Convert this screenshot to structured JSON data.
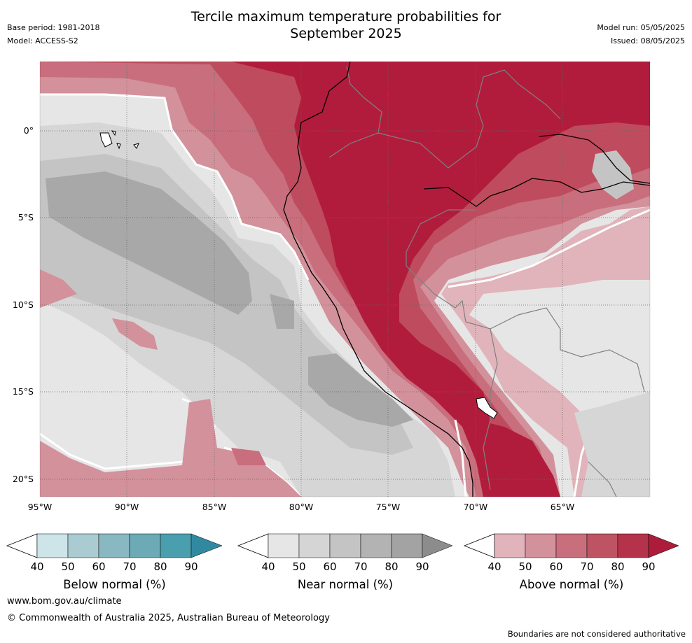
{
  "header": {
    "title_line1": "Tercile maximum temperature probabilities for",
    "title_line2": "September 2025",
    "base_period": "Base period: 1981-2018",
    "model": "Model: ACCESS-S2",
    "model_run": "Model run: 05/05/2025",
    "issued": "Issued: 08/05/2025"
  },
  "map": {
    "lon_ticks": [
      "95°W",
      "90°W",
      "85°W",
      "80°W",
      "75°W",
      "70°W",
      "65°W"
    ],
    "lat_ticks": [
      "0°",
      "5°S",
      "10°S",
      "15°S",
      "20°S"
    ],
    "colors": {
      "near_30": "#ffffff",
      "near_40": "#e6e6e6",
      "near_50": "#d6d6d6",
      "near_60": "#c4c4c4",
      "near_70": "#a8a8a8",
      "above_40": "#e0b4ba",
      "above_50": "#d3919b",
      "above_60": "#c96e7c",
      "above_70": "#be4c5e",
      "above_80": "#b21c3c",
      "grid": "#666666",
      "coast": "#000000",
      "border": "#808080"
    }
  },
  "colorbars": [
    {
      "label": "Below normal (%)",
      "ticks": [
        "40",
        "50",
        "60",
        "70",
        "80",
        "90"
      ],
      "colors": [
        "#cde4e8",
        "#a9cbd1",
        "#8ab8c2",
        "#6cabb6",
        "#4a9fae",
        "#3189a0"
      ]
    },
    {
      "label": "Near normal (%)",
      "ticks": [
        "40",
        "50",
        "60",
        "70",
        "80",
        "90"
      ],
      "colors": [
        "#e6e6e6",
        "#d5d5d5",
        "#c4c4c4",
        "#b3b3b3",
        "#a3a3a3",
        "#8c8c8c"
      ]
    },
    {
      "label": "Above normal (%)",
      "ticks": [
        "40",
        "50",
        "60",
        "70",
        "80",
        "90"
      ],
      "colors": [
        "#e0b4ba",
        "#d3919b",
        "#c96e7c",
        "#be5463",
        "#b5334a",
        "#ad1c3a"
      ]
    }
  ],
  "footer": {
    "url": "www.bom.gov.au/climate",
    "copyright": "© Commonwealth of Australia 2025, Australian Bureau of Meteorology",
    "note": "Boundaries are not considered authoritative"
  }
}
